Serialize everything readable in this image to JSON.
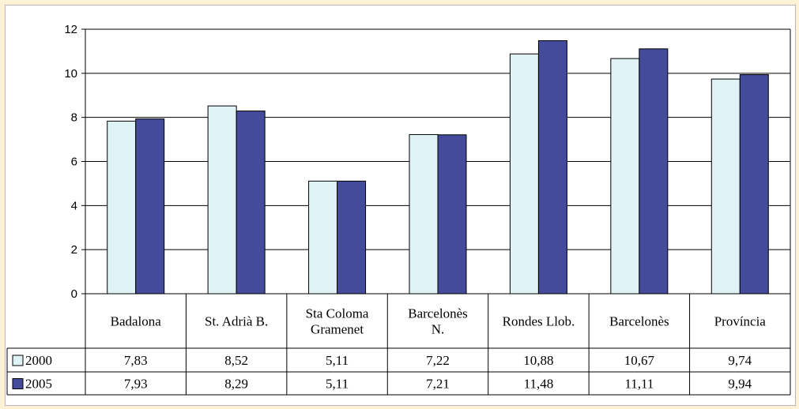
{
  "chart_data": {
    "type": "bar",
    "title": "",
    "xlabel": "",
    "ylabel": "",
    "ylim": [
      0,
      12
    ],
    "yticks": [
      0,
      2,
      4,
      6,
      8,
      10,
      12
    ],
    "grid": true,
    "legend": "in data table",
    "categories": [
      [
        "Badalona"
      ],
      [
        "St. Adrià B."
      ],
      [
        "Sta Coloma",
        "Gramenet"
      ],
      [
        "Barcelonès",
        "N."
      ],
      [
        "Rondes Llob."
      ],
      [
        "Barcelonès"
      ],
      [
        "Província"
      ]
    ],
    "series": [
      {
        "name": "2000",
        "color": "#dff3f6",
        "values": [
          7.83,
          8.52,
          5.11,
          7.22,
          10.88,
          10.67,
          9.74
        ],
        "labels": [
          "7,83",
          "8,52",
          "5,11",
          "7,22",
          "10,88",
          "10,67",
          "9,74"
        ]
      },
      {
        "name": "2005",
        "color": "#434b9a",
        "values": [
          7.93,
          8.29,
          5.11,
          7.21,
          11.48,
          11.11,
          9.94
        ],
        "labels": [
          "7,93",
          "8,29",
          "5,11",
          "7,21",
          "11,48",
          "11,11",
          "9,94"
        ]
      }
    ]
  }
}
